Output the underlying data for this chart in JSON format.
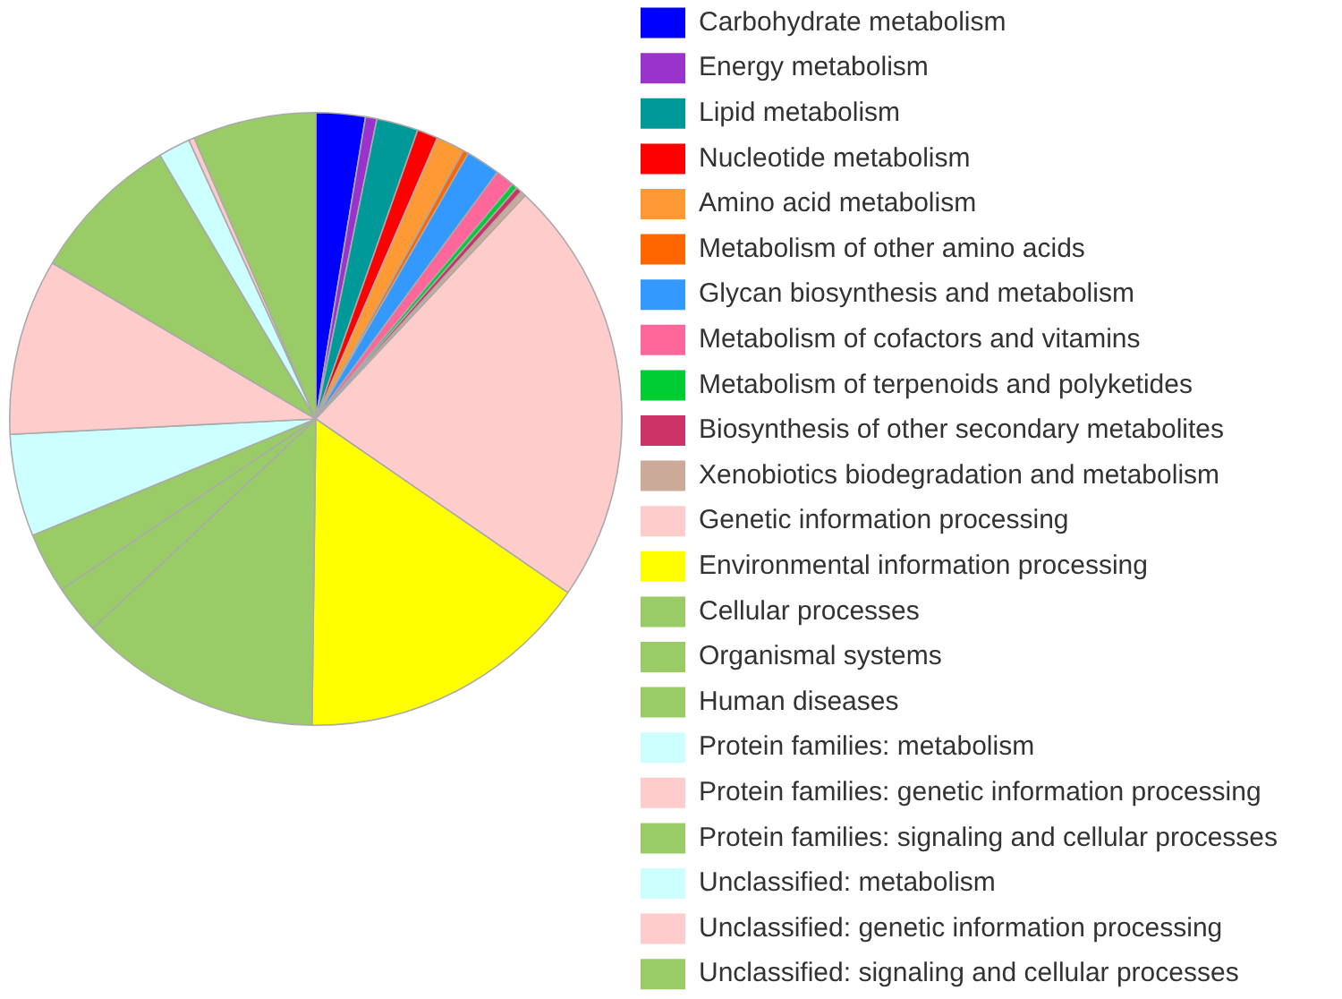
{
  "chart_data": {
    "type": "pie",
    "categories": [
      "Carbohydrate metabolism",
      "Energy metabolism",
      "Lipid metabolism",
      "Nucleotide metabolism",
      "Amino acid metabolism",
      "Metabolism of other amino acids",
      "Glycan biosynthesis and metabolism",
      "Metabolism of cofactors and vitamins",
      "Metabolism of terpenoids and polyketides",
      "Biosynthesis of other secondary metabolites",
      "Xenobiotics biodegradation and metabolism",
      "Genetic information processing",
      "Environmental information processing",
      "Cellular processes",
      "Organismal systems",
      "Human diseases",
      "Protein families: metabolism",
      "Protein families: genetic information processing",
      "Protein families: signaling and cellular processes",
      "Unclassified: metabolism",
      "Unclassified: genetic information processing",
      "Unclassified: signaling and cellular processes"
    ],
    "values": [
      2.6,
      0.6,
      2.2,
      1.1,
      1.5,
      0.3,
      1.8,
      1.0,
      0.3,
      0.3,
      0.3,
      22.6,
      15.6,
      12.8,
      2.6,
      3.2,
      5.4,
      9.3,
      8.0,
      1.7,
      0.3,
      6.5
    ],
    "colors": [
      "#0000ff",
      "#9933cc",
      "#009999",
      "#ff0000",
      "#ff9933",
      "#ff6600",
      "#3399ff",
      "#ff6699",
      "#00cc33",
      "#cc3366",
      "#ccaa99",
      "#ffcccc",
      "#ffff00",
      "#99cc66",
      "#99cc66",
      "#99cc66",
      "#ccffff",
      "#ffcccc",
      "#99cc66",
      "#ccffff",
      "#ffcccc",
      "#99cc66"
    ],
    "legend": "right"
  }
}
